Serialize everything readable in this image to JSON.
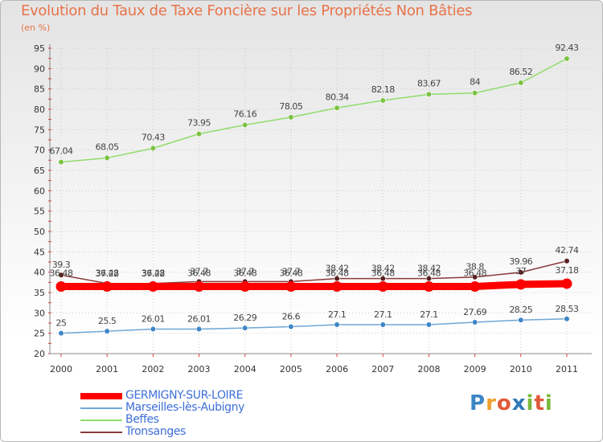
{
  "title": "Evolution du Taux de Taxe Foncière sur les Propriétés Non Bâties",
  "unit_label": "(en %)",
  "logo": {
    "letters": [
      "P",
      "r",
      "o",
      "x",
      "i",
      "t",
      "i"
    ],
    "colors": [
      "#3d86c6",
      "#f0a030",
      "#e05a3a",
      "#2f7ab8",
      "#79b83a",
      "#e05a3a",
      "#79b83a"
    ]
  },
  "chart_data": {
    "type": "line",
    "title": "Evolution du Taux de Taxe Foncière sur les Propriétés Non Bâties",
    "ylabel": "(en %)",
    "xlabel": "",
    "ylim": [
      20,
      95
    ],
    "yticks": [
      "20",
      "25",
      "30",
      "35",
      "40",
      "45",
      "50",
      "55",
      "60",
      "65",
      "70",
      "75",
      "80",
      "85",
      "90",
      "95"
    ],
    "categories": [
      "2000",
      "2001",
      "2002",
      "2003",
      "2004",
      "2005",
      "2006",
      "2007",
      "2008",
      "2009",
      "2010",
      "2011"
    ],
    "series": [
      {
        "name": "Beffes",
        "color": "#90dc6a",
        "marker": "#7cc242",
        "values": [
          67.04,
          68.05,
          70.43,
          73.95,
          76.16,
          78.05,
          80.34,
          82.18,
          83.67,
          84,
          86.52,
          92.43
        ],
        "labels": [
          "67.04",
          "68.05",
          "70.43",
          "73.95",
          "76.16",
          "78.05",
          "80.34",
          "82.18",
          "83.67",
          "84",
          "86.52",
          "92.43"
        ]
      },
      {
        "name": "Tronsanges",
        "color": "#8b3a3a",
        "marker": "#5a1f1f",
        "values": [
          39.3,
          37.22,
          37.22,
          37.7,
          37.7,
          37.7,
          38.42,
          38.42,
          38.42,
          38.8,
          39.96,
          42.74
        ],
        "labels": [
          "39.3",
          "37.22",
          "37.22",
          "37.7",
          "37.7",
          "37.7",
          "38.42",
          "38.42",
          "38.42",
          "38.8",
          "39.96",
          "42.74"
        ]
      },
      {
        "name": "GERMIGNY-SUR-LOIRE",
        "color": "#ff0000",
        "marker": "#ff0000",
        "values": [
          36.48,
          36.48,
          36.48,
          36.48,
          36.48,
          36.48,
          36.48,
          36.48,
          36.48,
          36.48,
          37,
          37.18
        ],
        "labels": [
          "36.48",
          "36.48",
          "36.48",
          "36.48",
          "36.48",
          "36.48",
          "36.48",
          "36.48",
          "36.48",
          "36.48",
          "37",
          "37.18"
        ]
      },
      {
        "name": "Marseilles-lès-Aubigny",
        "color": "#6ea6d6",
        "marker": "#3d86c6",
        "values": [
          25,
          25.5,
          26.01,
          26.01,
          26.29,
          26.6,
          27.1,
          27.1,
          27.1,
          27.69,
          28.25,
          28.53
        ],
        "labels": [
          "25",
          "25.5",
          "26.01",
          "26.01",
          "26.29",
          "26.6",
          "27.1",
          "27.1",
          "27.1",
          "27.69",
          "28.25",
          "28.53"
        ]
      }
    ],
    "legend": [
      {
        "name": "GERMIGNY-SUR-LOIRE",
        "color": "#ff0000",
        "text_color": "#3d6fd6"
      },
      {
        "name": "Marseilles-lès-Aubigny",
        "color": "#6ea6d6",
        "text_color": "#3d6fd6"
      },
      {
        "name": "Beffes",
        "color": "#90dc6a",
        "text_color": "#3d6fd6"
      },
      {
        "name": "Tronsanges",
        "color": "#8b3a3a",
        "text_color": "#3d6fd6"
      }
    ]
  }
}
